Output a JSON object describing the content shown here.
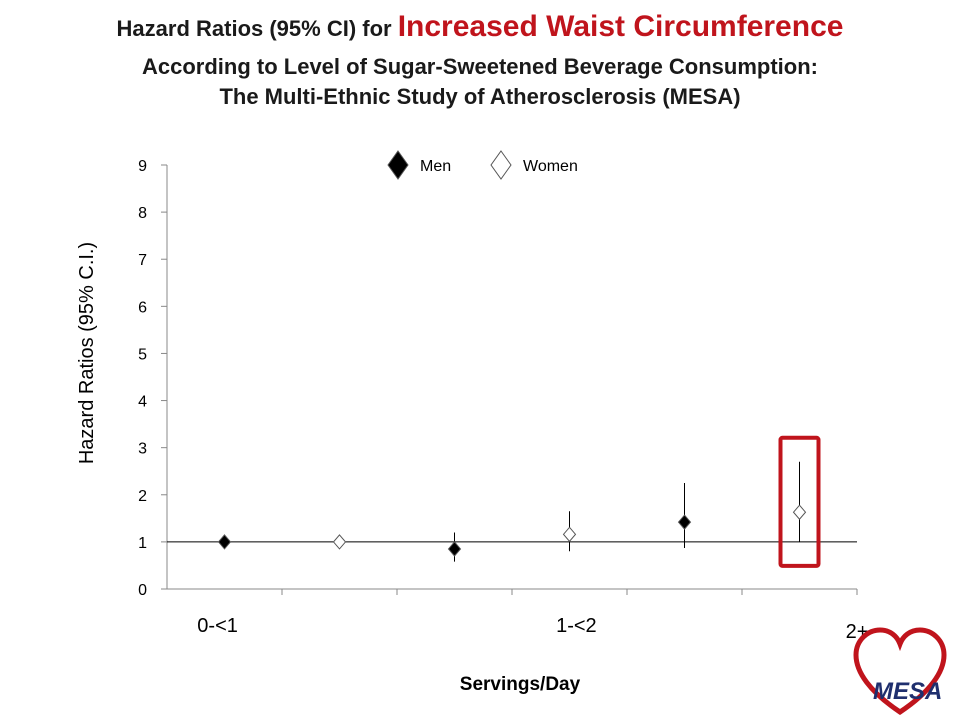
{
  "title": {
    "line1_prefix": "Hazard Ratios (95% CI) for ",
    "line1_highlight": "Increased Waist Circumference",
    "line2": "According to Level of Sugar-Sweetened Beverage Consumption:",
    "line3": "The Multi-Ethnic Study of Atherosclerosis (MESA)"
  },
  "colors": {
    "highlight": "#c0141c",
    "men": "#000000",
    "women": "#ffffff",
    "logo_blue": "#1f2f6e"
  },
  "logo": {
    "text": "MESA",
    "icon": "heart-logo-icon"
  },
  "chart_data": {
    "type": "scatter",
    "categories": [
      "0-<1",
      "1-<2",
      "2+"
    ],
    "xlabel": "Servings/Day",
    "ylabel": "Hazard Ratios (95% C.I.)",
    "ylim": [
      0,
      9
    ],
    "yticks": [
      0,
      1,
      2,
      3,
      4,
      5,
      6,
      7,
      8,
      9
    ],
    "reference_line": 1,
    "legend_position": "top-center",
    "series": [
      {
        "name": "Men",
        "marker": "filled-diamond",
        "points": [
          {
            "category": "0-<1",
            "value": 1.0,
            "lower": 1.0,
            "upper": 1.0
          },
          {
            "category": "1-<2",
            "value": 0.85,
            "lower": 0.58,
            "upper": 1.2
          },
          {
            "category": "2+",
            "value": 1.42,
            "lower": 0.87,
            "upper": 2.25
          }
        ]
      },
      {
        "name": "Women",
        "marker": "open-diamond",
        "points": [
          {
            "category": "0-<1",
            "value": 1.0,
            "lower": 1.0,
            "upper": 1.0
          },
          {
            "category": "1-<2",
            "value": 1.16,
            "lower": 0.8,
            "upper": 1.65
          },
          {
            "category": "2+",
            "value": 1.63,
            "lower": 1.0,
            "upper": 2.7
          }
        ]
      }
    ],
    "highlighted_point": {
      "series": "Women",
      "category": "2+"
    }
  }
}
